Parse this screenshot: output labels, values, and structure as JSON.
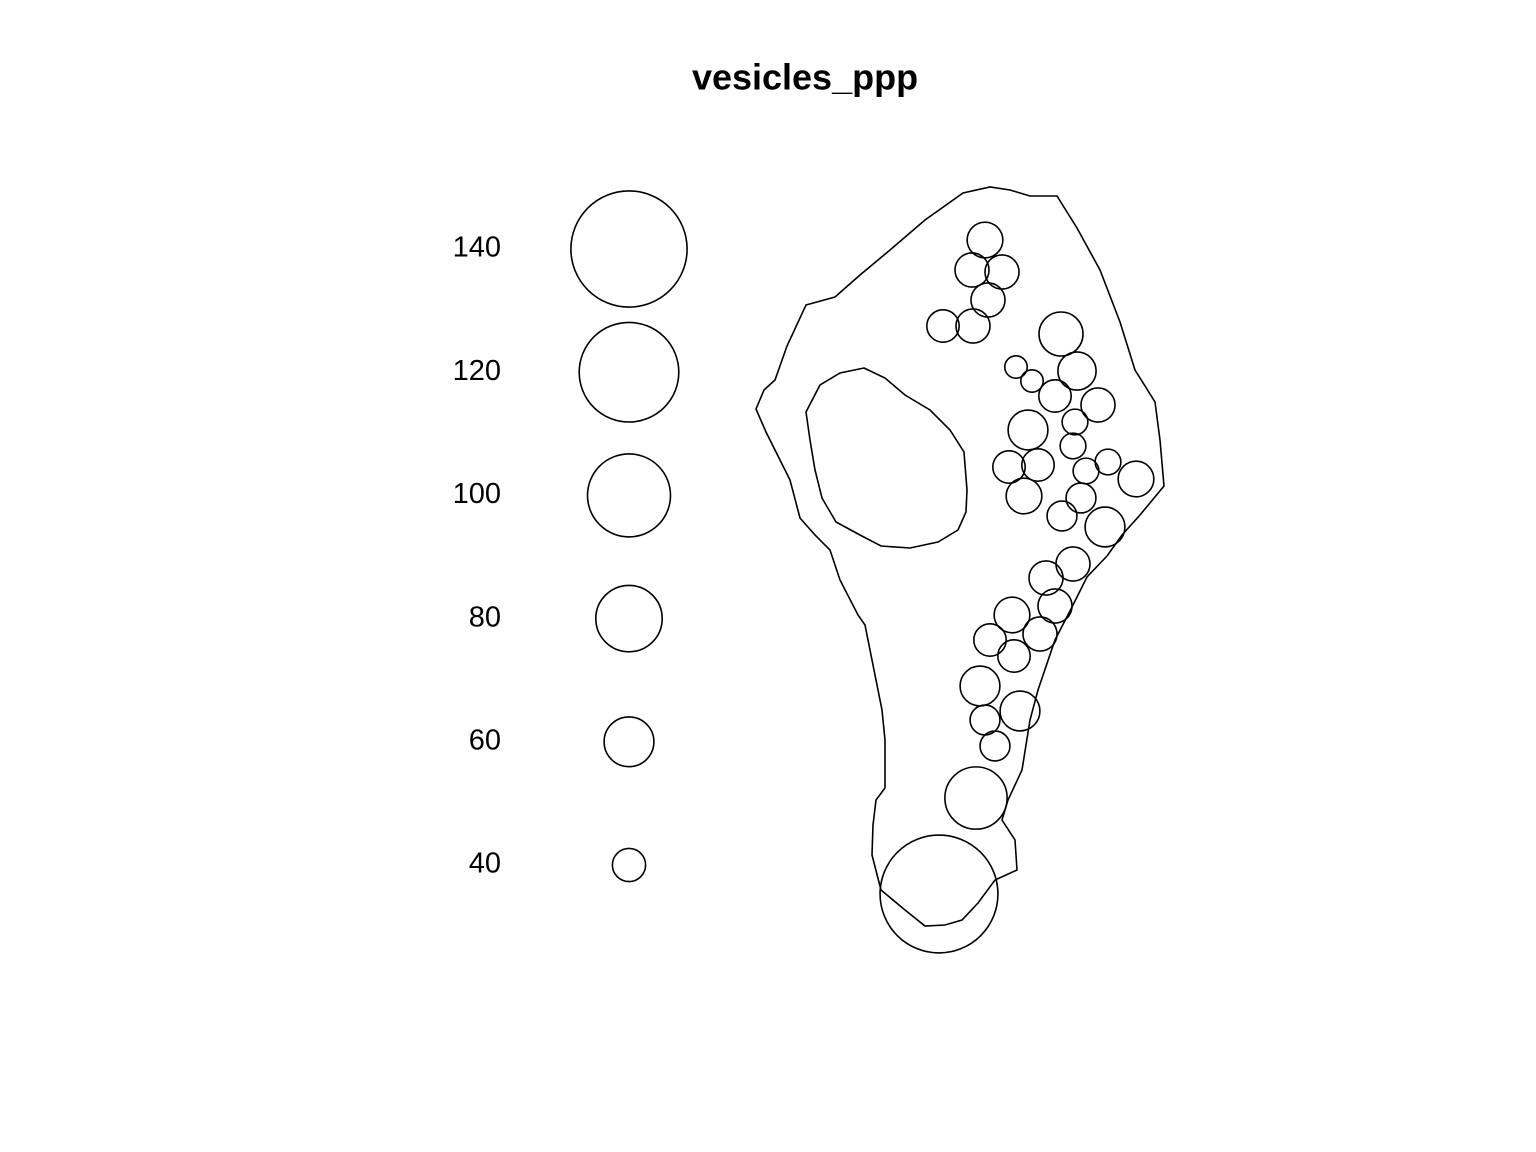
{
  "chart_data": {
    "type": "marked-points",
    "title": "vesicles_ppp",
    "x": [
      245,
      232,
      262,
      248,
      203,
      233,
      321,
      276,
      337,
      292,
      315,
      358,
      335,
      288,
      333,
      269,
      298,
      346,
      368,
      396,
      284,
      341,
      322,
      365,
      333,
      306,
      315,
      272,
      300,
      250,
      274,
      240,
      280,
      245,
      255,
      236,
      199
    ],
    "y": [
      720,
      690,
      688,
      660,
      634,
      634,
      626,
      593,
      589,
      579,
      564,
      555,
      538,
      530,
      514,
      493,
      495,
      489,
      498,
      481,
      464,
      462,
      444,
      433,
      396,
      382,
      354,
      345,
      326,
      320,
      304,
      274,
      249,
      240,
      214,
      162,
      66
    ],
    "marks": [
      43,
      41,
      41,
      41,
      39,
      41,
      53,
      27,
      46,
      27,
      39,
      41,
      31,
      48,
      31,
      39,
      39,
      31,
      31,
      43,
      43,
      36,
      36,
      48,
      41,
      41,
      41,
      43,
      41,
      39,
      39,
      48,
      48,
      36,
      36,
      75,
      142
    ],
    "legend_values": [
      40,
      60,
      80,
      100,
      120,
      140
    ]
  }
}
